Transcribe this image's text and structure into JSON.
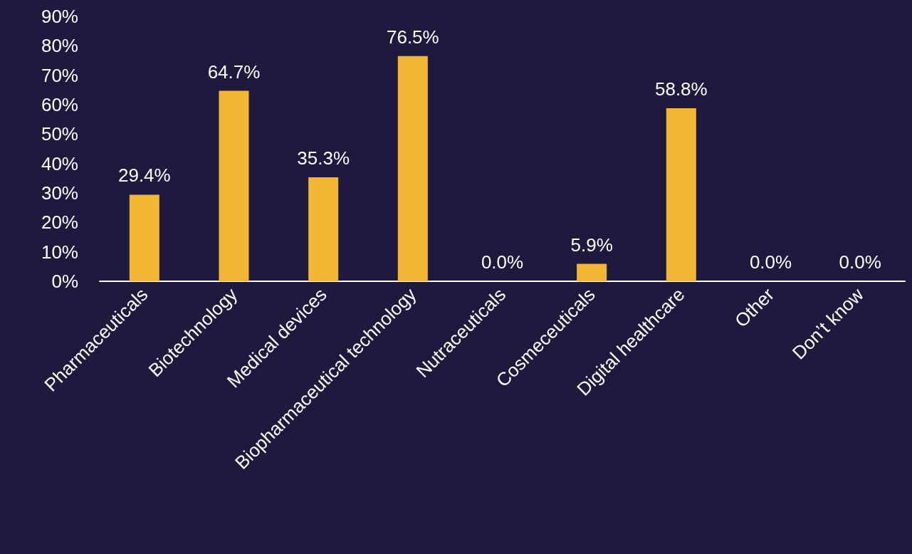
{
  "chart_data": {
    "type": "bar",
    "categories": [
      "Pharmaceuticals",
      "Biotechnology",
      "Medical devices",
      "Biopharmaceutical technology",
      "Nutraceuticals",
      "Cosmeceuticals",
      "Digital healthcare",
      "Other",
      "Don’t know"
    ],
    "values": [
      29.4,
      64.7,
      35.3,
      76.5,
      0,
      5.9,
      58.8,
      0,
      0
    ],
    "value_labels": [
      "29.4%",
      "64.7%",
      "35.3%",
      "76.5%",
      "0.0%",
      "5.9%",
      "58.8%",
      "0.0%",
      "0.0%"
    ],
    "color": "#f2b632",
    "ylim": [
      0,
      90
    ],
    "yticks": [
      {
        "value": 0,
        "label": "0%"
      },
      {
        "value": 10,
        "label": "10%"
      },
      {
        "value": 20,
        "label": "20%"
      },
      {
        "value": 30,
        "label": "30%"
      },
      {
        "value": 40,
        "label": "40%"
      },
      {
        "value": 50,
        "label": "50%"
      },
      {
        "value": 60,
        "label": "60%"
      },
      {
        "value": 70,
        "label": "70%"
      },
      {
        "value": 80,
        "label": "80%"
      },
      {
        "value": 90,
        "label": "90%"
      }
    ]
  }
}
